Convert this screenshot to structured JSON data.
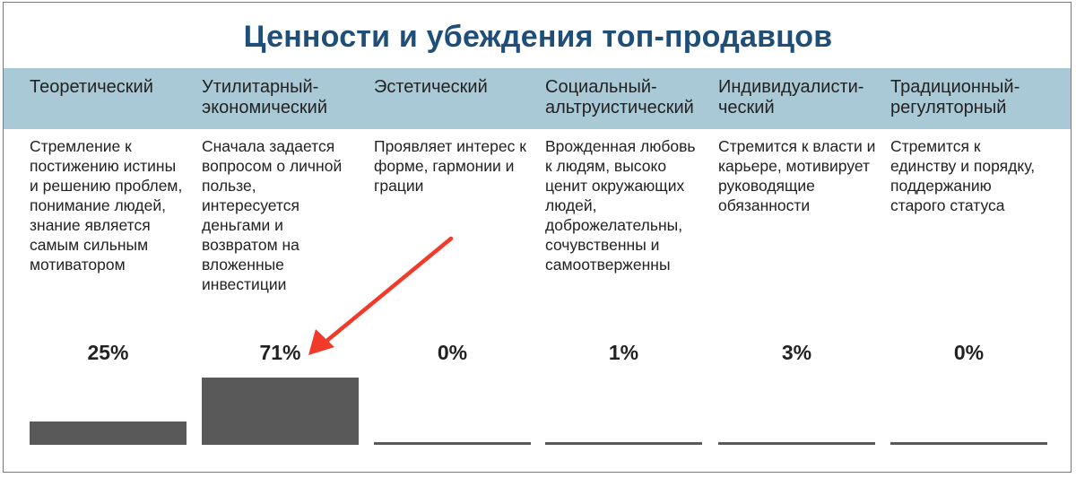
{
  "title": "Ценности и убеждения топ-продавцов",
  "accent_color": "#1f4e79",
  "band_color": "#a9c9d6",
  "bar_color": "#595959",
  "arrow_color": "#f23a2a",
  "columns": [
    {
      "header": [
        "Теоретический"
      ],
      "description": [
        "Стремление к",
        "постижению истины",
        "и решению проблем,",
        "понимание людей,",
        "знание является",
        "самым сильным",
        "мотиватором"
      ],
      "percent_label": "25%"
    },
    {
      "header": [
        "Утилитарный-",
        "экономический"
      ],
      "description": [
        "Сначала задается",
        "вопросом о личной",
        "пользе,",
        "интересуется",
        "деньгами и",
        "возвратом на",
        "вложенные",
        "инвестиции"
      ],
      "percent_label": "71%"
    },
    {
      "header": [
        "Эстетический"
      ],
      "description": [
        "Проявляет интерес к",
        "форме, гармонии и",
        "грации"
      ],
      "percent_label": "0%"
    },
    {
      "header": [
        "Социальный-",
        "альтруистический"
      ],
      "description": [
        "Врожденная любовь",
        "к людям, высоко",
        "ценит окружающих",
        "людей,",
        "доброжелательны,",
        "сочувственны и",
        "самоотверженны"
      ],
      "percent_label": "1%"
    },
    {
      "header": [
        "Индивидуалисти-",
        "ческий"
      ],
      "description": [
        "Стремится к власти и",
        "карьере, мотивирует",
        "руководящие",
        "обязанности"
      ],
      "percent_label": "3%"
    },
    {
      "header": [
        "Традиционный-",
        "регуляторный"
      ],
      "description": [
        "Стремится к",
        "единству и порядку,",
        "поддержанию",
        "старого статуса"
      ],
      "percent_label": "0%"
    }
  ],
  "chart_data": {
    "type": "bar",
    "categories": [
      "Теоретический",
      "Утилитарный-экономический",
      "Эстетический",
      "Социальный-альтруистический",
      "Индивидуалистический",
      "Традиционный-регуляторный"
    ],
    "values": [
      25,
      71,
      0,
      1,
      3,
      0
    ],
    "unit": "%",
    "ylim": [
      0,
      71
    ],
    "grid": false,
    "annotation": "red arrow pointing to 71%"
  }
}
